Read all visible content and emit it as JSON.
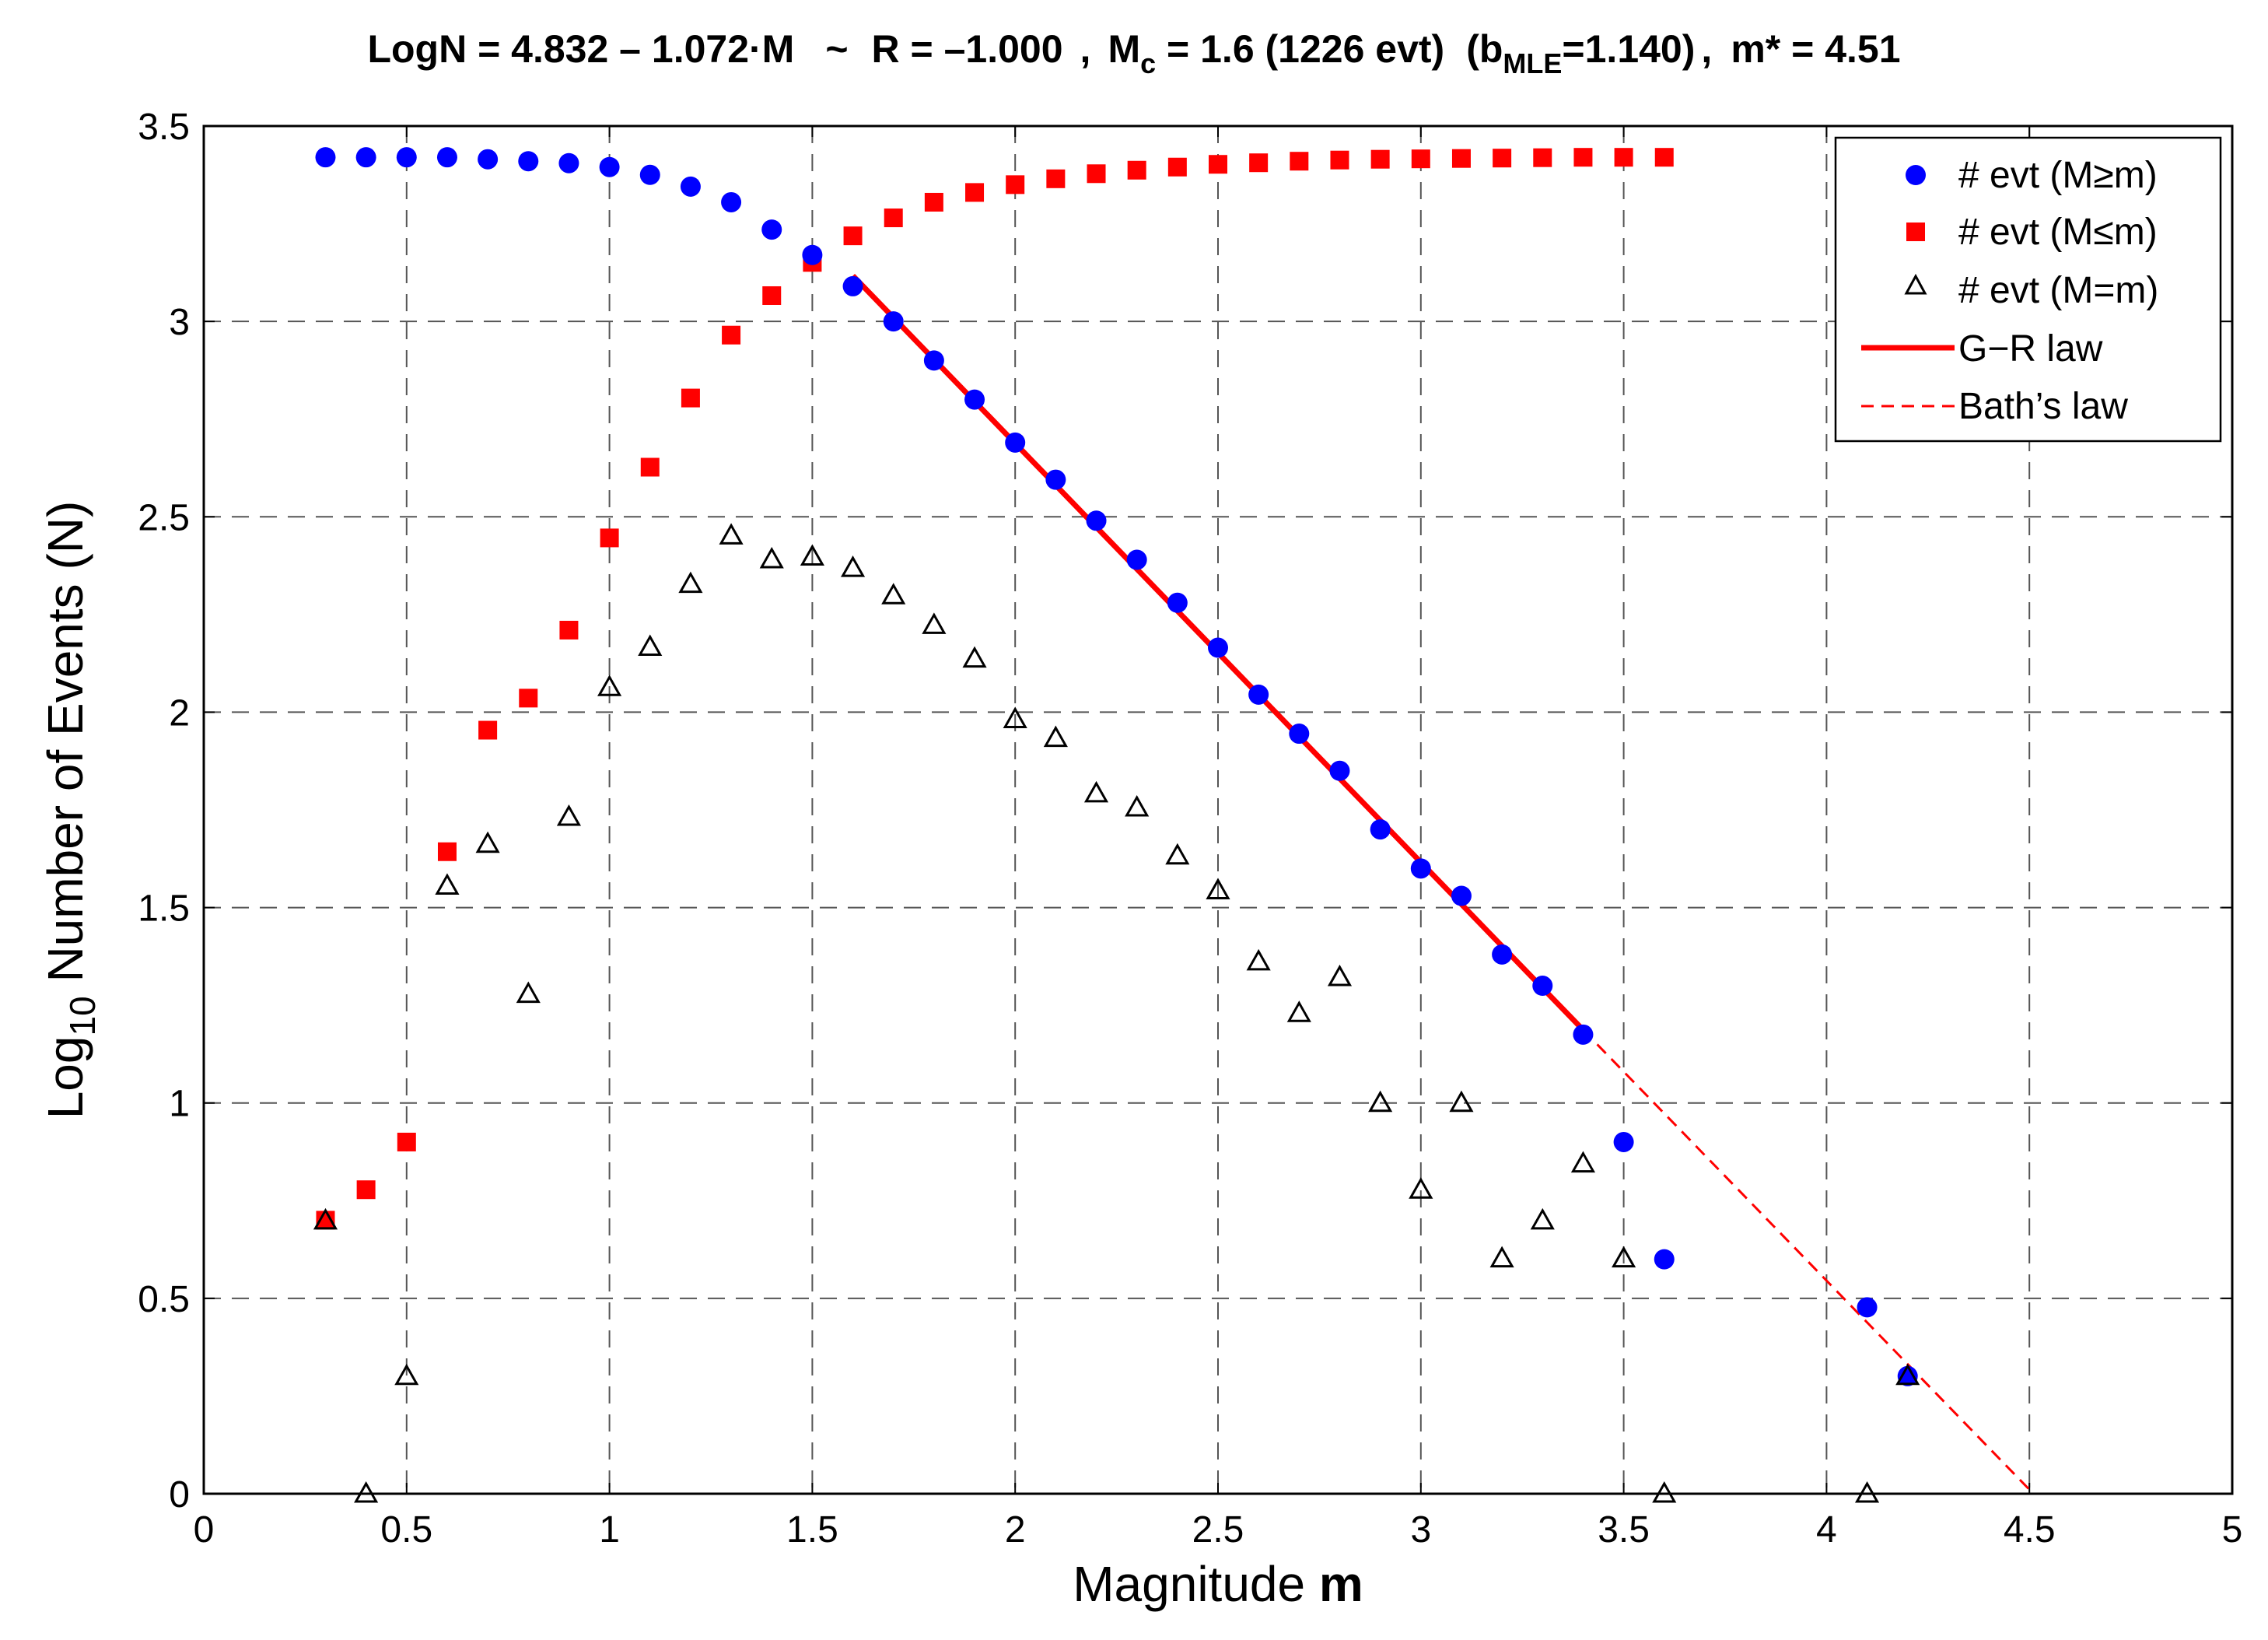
{
  "chart_data": {
    "type": "scatter",
    "title": {
      "eq": "LogN = 4.832 – 1.072·M",
      "tilde": "~",
      "r": "R = –1.000",
      "comma1": ",",
      "mc_base": "M",
      "mc_sub": "c",
      "mc_rest": " = 1.6 (1226 evt)",
      "b_open": "(b",
      "b_sub": "MLE",
      "b_rest": "=1.140)",
      "comma2": ",",
      "mstar": "m* = 4.51"
    },
    "xlabel": {
      "prefix": "Magnitude ",
      "bold": "m"
    },
    "ylabel": {
      "base": "Log",
      "sub": "10",
      "rest": " Number of Events (N)"
    },
    "xlim": [
      0,
      5
    ],
    "ylim": [
      0,
      3.5
    ],
    "grid": true,
    "xticks": [
      0,
      0.5,
      1,
      1.5,
      2,
      2.5,
      3,
      3.5,
      4,
      4.5,
      5
    ],
    "xtick_labels": [
      "0",
      "0.5",
      "1",
      "1.5",
      "2",
      "2.5",
      "3",
      "3.5",
      "4",
      "4.5",
      "5"
    ],
    "yticks": [
      0,
      0.5,
      1,
      1.5,
      2,
      2.5,
      3,
      3.5
    ],
    "ytick_labels": [
      "0",
      "0.5",
      "1",
      "1.5",
      "2",
      "2.5",
      "3",
      "3.5"
    ],
    "legend_position": "top-right",
    "series": [
      {
        "name": "# evt (M≥m)",
        "marker": "circle",
        "color": "#0000ff",
        "x": [
          0.3,
          0.4,
          0.5,
          0.6,
          0.7,
          0.8,
          0.9,
          1.0,
          1.1,
          1.2,
          1.3,
          1.4,
          1.5,
          1.6,
          1.7,
          1.8,
          1.9,
          2.0,
          2.1,
          2.2,
          2.3,
          2.4,
          2.5,
          2.6,
          2.7,
          2.8,
          2.9,
          3.0,
          3.1,
          3.2,
          3.3,
          3.4,
          3.5,
          3.6,
          4.1,
          4.2
        ],
        "y": [
          3.42,
          3.42,
          3.42,
          3.42,
          3.415,
          3.41,
          3.405,
          3.395,
          3.375,
          3.345,
          3.305,
          3.235,
          3.17,
          3.09,
          3.0,
          2.9,
          2.8,
          2.69,
          2.595,
          2.49,
          2.39,
          2.28,
          2.165,
          2.045,
          1.945,
          1.85,
          1.7,
          1.6,
          1.53,
          1.38,
          1.3,
          1.175,
          0.9,
          0.6,
          0.477,
          0.301
        ]
      },
      {
        "name": "# evt (M≤m)",
        "marker": "square",
        "color": "#ff0000",
        "x": [
          0.3,
          0.4,
          0.5,
          0.6,
          0.7,
          0.8,
          0.9,
          1.0,
          1.1,
          1.2,
          1.3,
          1.4,
          1.5,
          1.6,
          1.7,
          1.8,
          1.9,
          2.0,
          2.1,
          2.2,
          2.3,
          2.4,
          2.5,
          2.6,
          2.7,
          2.8,
          2.9,
          3.0,
          3.1,
          3.2,
          3.3,
          3.4,
          3.5,
          3.6
        ],
        "y": [
          0.7,
          0.778,
          0.9,
          1.643,
          1.954,
          2.036,
          2.21,
          2.446,
          2.627,
          2.804,
          2.965,
          3.066,
          3.151,
          3.219,
          3.265,
          3.305,
          3.33,
          3.35,
          3.365,
          3.378,
          3.387,
          3.395,
          3.402,
          3.406,
          3.41,
          3.413,
          3.415,
          3.416,
          3.417,
          3.418,
          3.419,
          3.42,
          3.42,
          3.42
        ]
      },
      {
        "name": "# evt (M=m)",
        "marker": "triangle",
        "color": "#000000",
        "x": [
          0.3,
          0.4,
          0.5,
          0.6,
          0.7,
          0.8,
          0.9,
          1.0,
          1.1,
          1.2,
          1.3,
          1.4,
          1.5,
          1.6,
          1.7,
          1.8,
          1.9,
          2.0,
          2.1,
          2.2,
          2.3,
          2.4,
          2.5,
          2.6,
          2.7,
          2.8,
          2.9,
          3.0,
          3.1,
          3.2,
          3.3,
          3.4,
          3.5,
          3.6,
          4.1,
          4.2
        ],
        "y": [
          0.699,
          0.0,
          0.301,
          1.556,
          1.663,
          1.279,
          1.732,
          2.064,
          2.167,
          2.328,
          2.452,
          2.391,
          2.398,
          2.369,
          2.299,
          2.223,
          2.137,
          1.982,
          1.934,
          1.792,
          1.756,
          1.633,
          1.544,
          1.362,
          1.23,
          1.322,
          1.0,
          0.778,
          1.0,
          0.602,
          0.699,
          0.845,
          0.602,
          0.0,
          0.0,
          0.301
        ]
      },
      {
        "name": "G−R law",
        "marker": "line-solid",
        "color": "#ff0000",
        "x": [
          1.6,
          3.4
        ],
        "y": [
          3.117,
          1.187
        ]
      },
      {
        "name": "Bath’s law",
        "marker": "line-dashed",
        "color": "#ff0000",
        "x": [
          3.4,
          4.51
        ],
        "y": [
          1.187,
          0.0
        ]
      }
    ]
  }
}
